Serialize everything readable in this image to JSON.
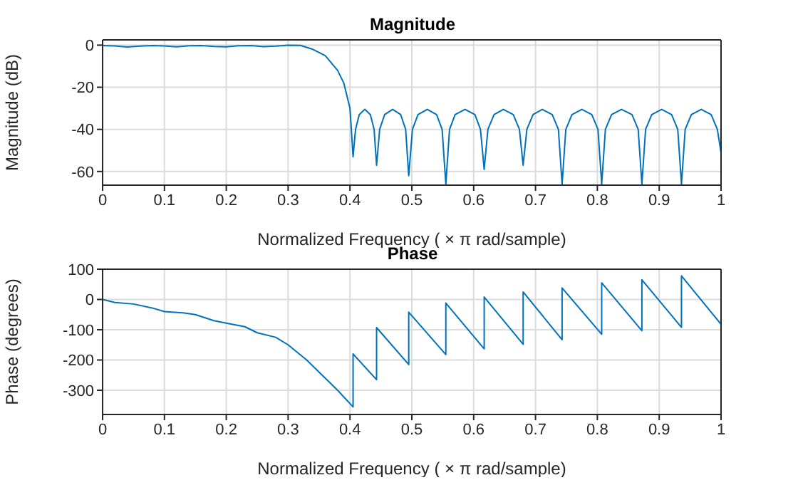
{
  "chart_data": [
    {
      "type": "line",
      "title": "Magnitude",
      "xlabel": "Normalized Frequency  ( × π rad/sample)",
      "ylabel": "Magnitude (dB)",
      "xlim": [
        0,
        1
      ],
      "xticks": [
        0,
        0.1,
        0.2,
        0.3,
        0.4,
        0.5,
        0.6,
        0.7,
        0.8,
        0.9,
        1
      ],
      "ylim": [
        -66.5,
        2.5
      ],
      "yticks": [
        -60,
        -40,
        -20,
        0
      ],
      "grid": true,
      "marker": "none",
      "series": [
        {
          "color": "#0072bd",
          "x": [
            0,
            0.02,
            0.04,
            0.06,
            0.08,
            0.1,
            0.12,
            0.14,
            0.16,
            0.18,
            0.2,
            0.22,
            0.24,
            0.26,
            0.28,
            0.3,
            0.32,
            0.34,
            0.36,
            0.38,
            0.39,
            0.4,
            0.405,
            0.409,
            0.415,
            0.424,
            0.433,
            0.439,
            0.443,
            0.448,
            0.456,
            0.469,
            0.482,
            0.49,
            0.495,
            0.501,
            0.51,
            0.525,
            0.54,
            0.549,
            0.555,
            0.561,
            0.57,
            0.586,
            0.602,
            0.611,
            0.617,
            0.623,
            0.633,
            0.648,
            0.664,
            0.674,
            0.68,
            0.686,
            0.696,
            0.711,
            0.727,
            0.737,
            0.743,
            0.749,
            0.759,
            0.775,
            0.791,
            0.801,
            0.807,
            0.813,
            0.823,
            0.839,
            0.856,
            0.866,
            0.872,
            0.878,
            0.888,
            0.904,
            0.92,
            0.93,
            0.936,
            0.942,
            0.952,
            0.968,
            0.984,
            0.994,
            1
          ],
          "values": [
            -0.2,
            -0.4,
            -0.9,
            -0.5,
            -0.2,
            -0.4,
            -0.8,
            -0.3,
            -0.2,
            -0.6,
            -0.8,
            -0.3,
            -0.2,
            -0.7,
            -0.5,
            0,
            -0.1,
            -2,
            -5,
            -12,
            -18,
            -30,
            -53,
            -40,
            -33,
            -30.5,
            -33,
            -40,
            -57,
            -40,
            -33,
            -30.5,
            -33,
            -40,
            -62,
            -40,
            -33,
            -30.5,
            -33,
            -40,
            -66,
            -40,
            -33,
            -30.5,
            -33,
            -40,
            -59,
            -40,
            -33,
            -30.5,
            -33,
            -40,
            -57,
            -40,
            -33,
            -30.5,
            -33,
            -40,
            -66,
            -40,
            -33,
            -30.5,
            -33,
            -40,
            -66,
            -40,
            -33,
            -30.5,
            -33,
            -40,
            -66,
            -40,
            -33,
            -30.5,
            -33,
            -40,
            -66,
            -40,
            -33,
            -30.5,
            -33,
            -40,
            -51
          ]
        }
      ]
    },
    {
      "type": "line",
      "title": "Phase",
      "xlabel": "Normalized Frequency  ( × π rad/sample)",
      "ylabel": "Phase (degrees)",
      "xlim": [
        0,
        1
      ],
      "xticks": [
        0,
        0.1,
        0.2,
        0.3,
        0.4,
        0.5,
        0.6,
        0.7,
        0.8,
        0.9,
        1
      ],
      "ylim": [
        -380,
        100
      ],
      "yticks": [
        -300,
        -200,
        -100,
        0,
        100
      ],
      "grid": true,
      "marker": "none",
      "series": [
        {
          "color": "#0072bd",
          "x": [
            0,
            0.02,
            0.05,
            0.08,
            0.1,
            0.13,
            0.15,
            0.18,
            0.2,
            0.23,
            0.25,
            0.28,
            0.3,
            0.33,
            0.35,
            0.38,
            0.405,
            0.405,
            0.443,
            0.443,
            0.495,
            0.495,
            0.555,
            0.555,
            0.617,
            0.617,
            0.68,
            0.68,
            0.743,
            0.743,
            0.807,
            0.807,
            0.872,
            0.872,
            0.936,
            0.936,
            1
          ],
          "values": [
            0,
            -10,
            -15,
            -28,
            -40,
            -44,
            -50,
            -70,
            -78,
            -90,
            -110,
            -125,
            -150,
            -200,
            -240,
            -300,
            -355,
            -180,
            -265,
            -93,
            -215,
            -42,
            -182,
            -12,
            -163,
            8,
            -148,
            25,
            -133,
            38,
            -115,
            55,
            -103,
            65,
            -92,
            78,
            -82
          ]
        }
      ]
    }
  ]
}
